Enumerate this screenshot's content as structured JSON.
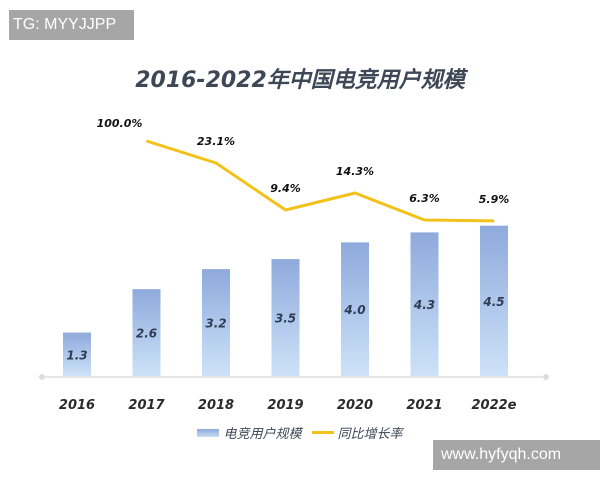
{
  "watermarks": {
    "top_left": "TG: MYYJJPP",
    "bottom_right": "www.hyfyqh.com"
  },
  "chart_data": {
    "type": "bar+line",
    "title": "2016-2022年中国电竞用户规模",
    "categories": [
      "2016",
      "2017",
      "2018",
      "2019",
      "2020",
      "2021",
      "2022e"
    ],
    "series": [
      {
        "name": "电竞用户规模",
        "type": "bar",
        "values": [
          1.3,
          2.6,
          3.2,
          3.5,
          4.0,
          4.3,
          4.5
        ],
        "labels": [
          "1.3",
          "2.6",
          "3.2",
          "3.5",
          "4.0",
          "4.3",
          "4.5"
        ],
        "color": "#8eaadc"
      },
      {
        "name": "同比增长率",
        "type": "line",
        "values": [
          null,
          100.0,
          23.1,
          9.4,
          14.3,
          6.3,
          5.9
        ],
        "labels": [
          "",
          "100.0%",
          "23.1%",
          "9.4%",
          "14.3%",
          "6.3%",
          "5.9%"
        ],
        "color": "#f2c21b"
      }
    ],
    "legend": "bottom",
    "grid": false
  }
}
